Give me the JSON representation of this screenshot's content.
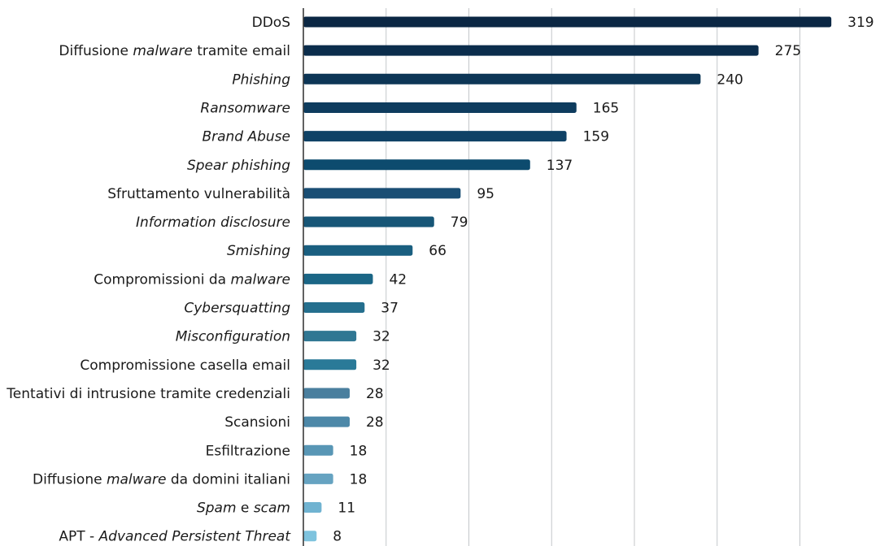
{
  "chart_data": {
    "type": "bar",
    "orientation": "horizontal",
    "title": "",
    "xlabel": "",
    "ylabel": "",
    "xlim": [
      0,
      350
    ],
    "grid": true,
    "categories": [
      "DDoS",
      "Diffusione malware tramite email",
      "Phishing",
      "Ransomware",
      "Brand Abuse",
      "Spear phishing",
      "Sfruttamento vulnerabilità",
      "Information disclosure",
      "Smishing",
      "Compromissioni da malware",
      "Cybersquatting",
      "Misconfiguration",
      "Compromissione casella email",
      "Tentativi di intrusione tramite credenziali",
      "Scansioni",
      "Esfiltrazione",
      "Diffusione malware da domini italiani",
      "Spam e scam",
      "APT - Advanced Persistent Threat"
    ],
    "label_parts": [
      [
        {
          "t": "DDoS",
          "i": false
        }
      ],
      [
        {
          "t": "Diffusione ",
          "i": false
        },
        {
          "t": "malware",
          "i": true
        },
        {
          "t": " tramite email",
          "i": false
        }
      ],
      [
        {
          "t": "Phishing",
          "i": true
        }
      ],
      [
        {
          "t": "Ransomware",
          "i": true
        }
      ],
      [
        {
          "t": "Brand Abuse",
          "i": true
        }
      ],
      [
        {
          "t": "Spear phishing",
          "i": true
        }
      ],
      [
        {
          "t": "Sfruttamento vulnerabilità",
          "i": false
        }
      ],
      [
        {
          "t": "Information disclosure",
          "i": true
        }
      ],
      [
        {
          "t": "Smishing",
          "i": true
        }
      ],
      [
        {
          "t": "Compromissioni da ",
          "i": false
        },
        {
          "t": "malware",
          "i": true
        }
      ],
      [
        {
          "t": "Cybersquatting",
          "i": true
        }
      ],
      [
        {
          "t": "Misconfiguration",
          "i": true
        }
      ],
      [
        {
          "t": "Compromissione casella email",
          "i": false
        }
      ],
      [
        {
          "t": "Tentativi di intrusione tramite credenziali",
          "i": false
        }
      ],
      [
        {
          "t": "Scansioni",
          "i": false
        }
      ],
      [
        {
          "t": "Esfiltrazione",
          "i": false
        }
      ],
      [
        {
          "t": "Diffusione ",
          "i": false
        },
        {
          "t": "malware",
          "i": true
        },
        {
          "t": " da domini italiani",
          "i": false
        }
      ],
      [
        {
          "t": "Spam",
          "i": true
        },
        {
          "t": " e ",
          "i": false
        },
        {
          "t": "scam",
          "i": true
        }
      ],
      [
        {
          "t": "APT - ",
          "i": false
        },
        {
          "t": "Advanced Persistent Threat",
          "i": true
        }
      ]
    ],
    "values": [
      319,
      275,
      240,
      165,
      159,
      137,
      95,
      79,
      66,
      42,
      37,
      32,
      32,
      28,
      28,
      18,
      18,
      11,
      8
    ],
    "colors": [
      "#0b2744",
      "#0b2d4c",
      "#0d3656",
      "#0e3c5e",
      "#0f4266",
      "#0d4b6e",
      "#1a4e74",
      "#175677",
      "#1a5f80",
      "#1b6686",
      "#256f8e",
      "#307793",
      "#2a7a98",
      "#4a7f9e",
      "#4d88a8",
      "#5896b5",
      "#66a3c1",
      "#70b3d1",
      "#7ec3de"
    ]
  }
}
